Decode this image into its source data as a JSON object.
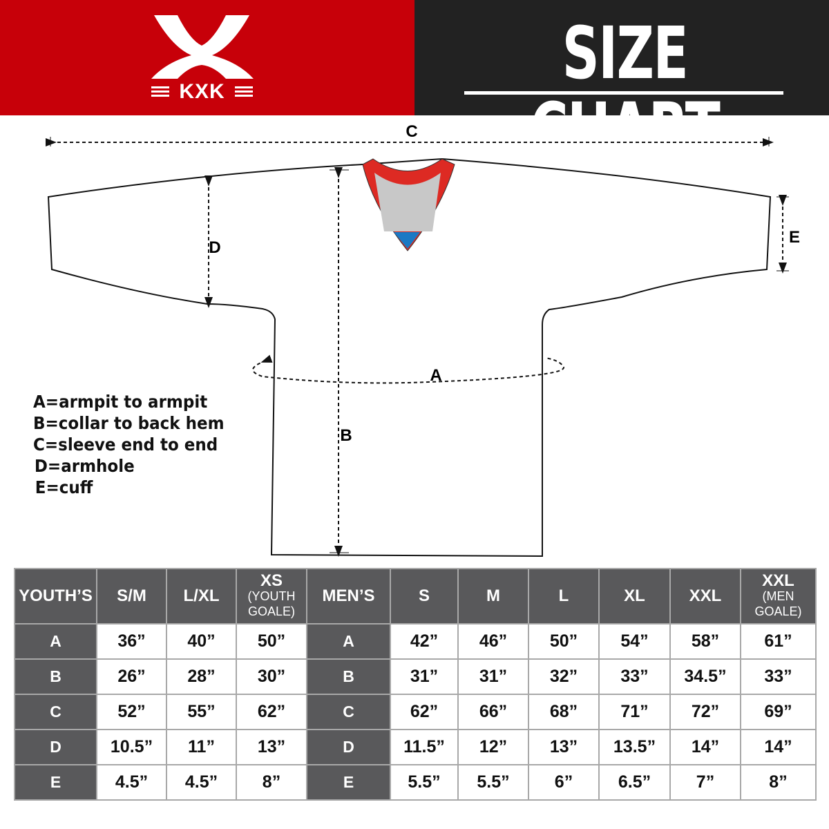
{
  "header": {
    "brand": "KXK",
    "title": "SIZE CHART",
    "colors": {
      "red": "#c70009",
      "dark": "#222222",
      "table_header": "#59595b",
      "collar_red": "#dd2a23",
      "collar_gray": "#c8c8c8",
      "collar_blue": "#1b79c4"
    }
  },
  "diagram": {
    "labels": {
      "A": "A",
      "B": "B",
      "C": "C",
      "D": "D",
      "E": "E"
    }
  },
  "legend": [
    "A=armpit to armpit",
    "B=collar to back hem",
    "C=sleeve end to end",
    "D=armhole",
    "E=cuff"
  ],
  "table": {
    "youth_header": "YOUTH’S",
    "youth_sizes": [
      {
        "main": "S/M",
        "sub": ""
      },
      {
        "main": "L/XL",
        "sub": ""
      },
      {
        "main": "XS",
        "sub": "(YOUTH GOALE)"
      }
    ],
    "men_header": "MEN’S",
    "men_sizes": [
      {
        "main": "S",
        "sub": ""
      },
      {
        "main": "M",
        "sub": ""
      },
      {
        "main": "L",
        "sub": ""
      },
      {
        "main": "XL",
        "sub": ""
      },
      {
        "main": "XXL",
        "sub": ""
      },
      {
        "main": "XXL",
        "sub": "(MEN GOALE)"
      }
    ],
    "rows": [
      {
        "label": "A",
        "youth": [
          "36”",
          "40”",
          "50”"
        ],
        "men": [
          "42”",
          "46”",
          "50”",
          "54”",
          "58”",
          "61”"
        ]
      },
      {
        "label": "B",
        "youth": [
          "26”",
          "28”",
          "30”"
        ],
        "men": [
          "31”",
          "31”",
          "32”",
          "33”",
          "34.5”",
          "33”"
        ]
      },
      {
        "label": "C",
        "youth": [
          "52”",
          "55”",
          "62”"
        ],
        "men": [
          "62”",
          "66”",
          "68”",
          "71”",
          "72”",
          "69”"
        ]
      },
      {
        "label": "D",
        "youth": [
          "10.5”",
          "11”",
          "13”"
        ],
        "men": [
          "11.5”",
          "12”",
          "13”",
          "13.5”",
          "14”",
          "14”"
        ]
      },
      {
        "label": "E",
        "youth": [
          "4.5”",
          "4.5”",
          "8”"
        ],
        "men": [
          "5.5”",
          "5.5”",
          "6”",
          "6.5”",
          "7”",
          "8”"
        ]
      }
    ]
  }
}
